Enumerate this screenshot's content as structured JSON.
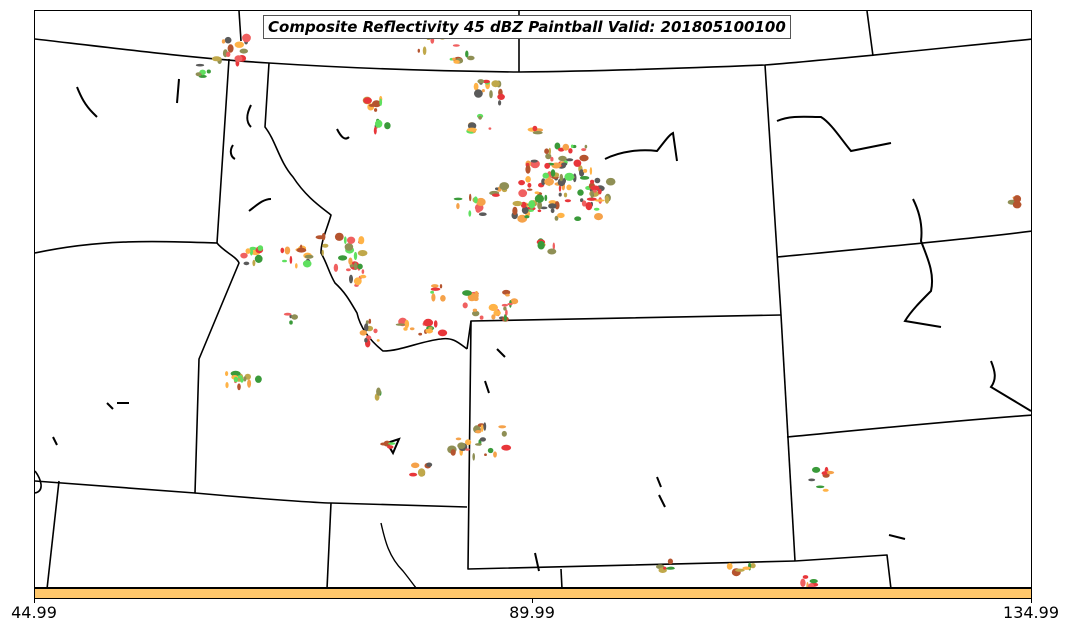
{
  "title": "Composite Reflectivity 45 dBZ Paintball Valid: 201805100100",
  "colorbar": {
    "color": "#ffc76b",
    "ticks": [
      "44.99",
      "89.99",
      "134.99"
    ]
  },
  "paint_colors": [
    "#e8363a",
    "#f06060",
    "#5fe05f",
    "#3a9a3a",
    "#5a5a5a",
    "#8f8f55",
    "#f5a24a",
    "#b5542f",
    "#c0a84a",
    "#ffb347"
  ]
}
